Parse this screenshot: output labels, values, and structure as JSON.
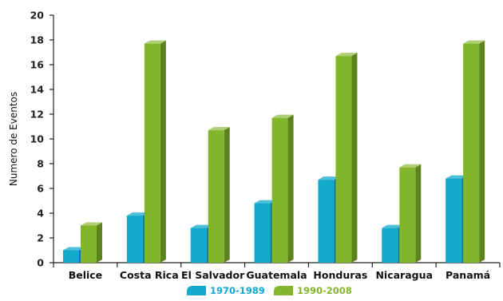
{
  "chart_data": {
    "type": "bar",
    "style": "3d-column",
    "categories": [
      "Belice",
      "Costa Rica",
      "El Salvador",
      "Guatemala",
      "Honduras",
      "Nicaragua",
      "Panamá"
    ],
    "series": [
      {
        "name": "1970-1989",
        "values": [
          1,
          3.8,
          2.8,
          4.8,
          6.7,
          2.8,
          6.8
        ],
        "color": "#12a9cc"
      },
      {
        "name": "1990-2008",
        "values": [
          3,
          17.7,
          10.7,
          11.7,
          16.7,
          7.7,
          17.7
        ],
        "color": "#82b52a"
      }
    ],
    "ylabel": "Numero de Eventos",
    "xlabel": "",
    "ylim": [
      0,
      20
    ],
    "yticks": [
      0,
      2,
      4,
      6,
      8,
      10,
      12,
      14,
      16,
      18,
      20
    ],
    "grid": false,
    "legend_position": "bottom"
  }
}
